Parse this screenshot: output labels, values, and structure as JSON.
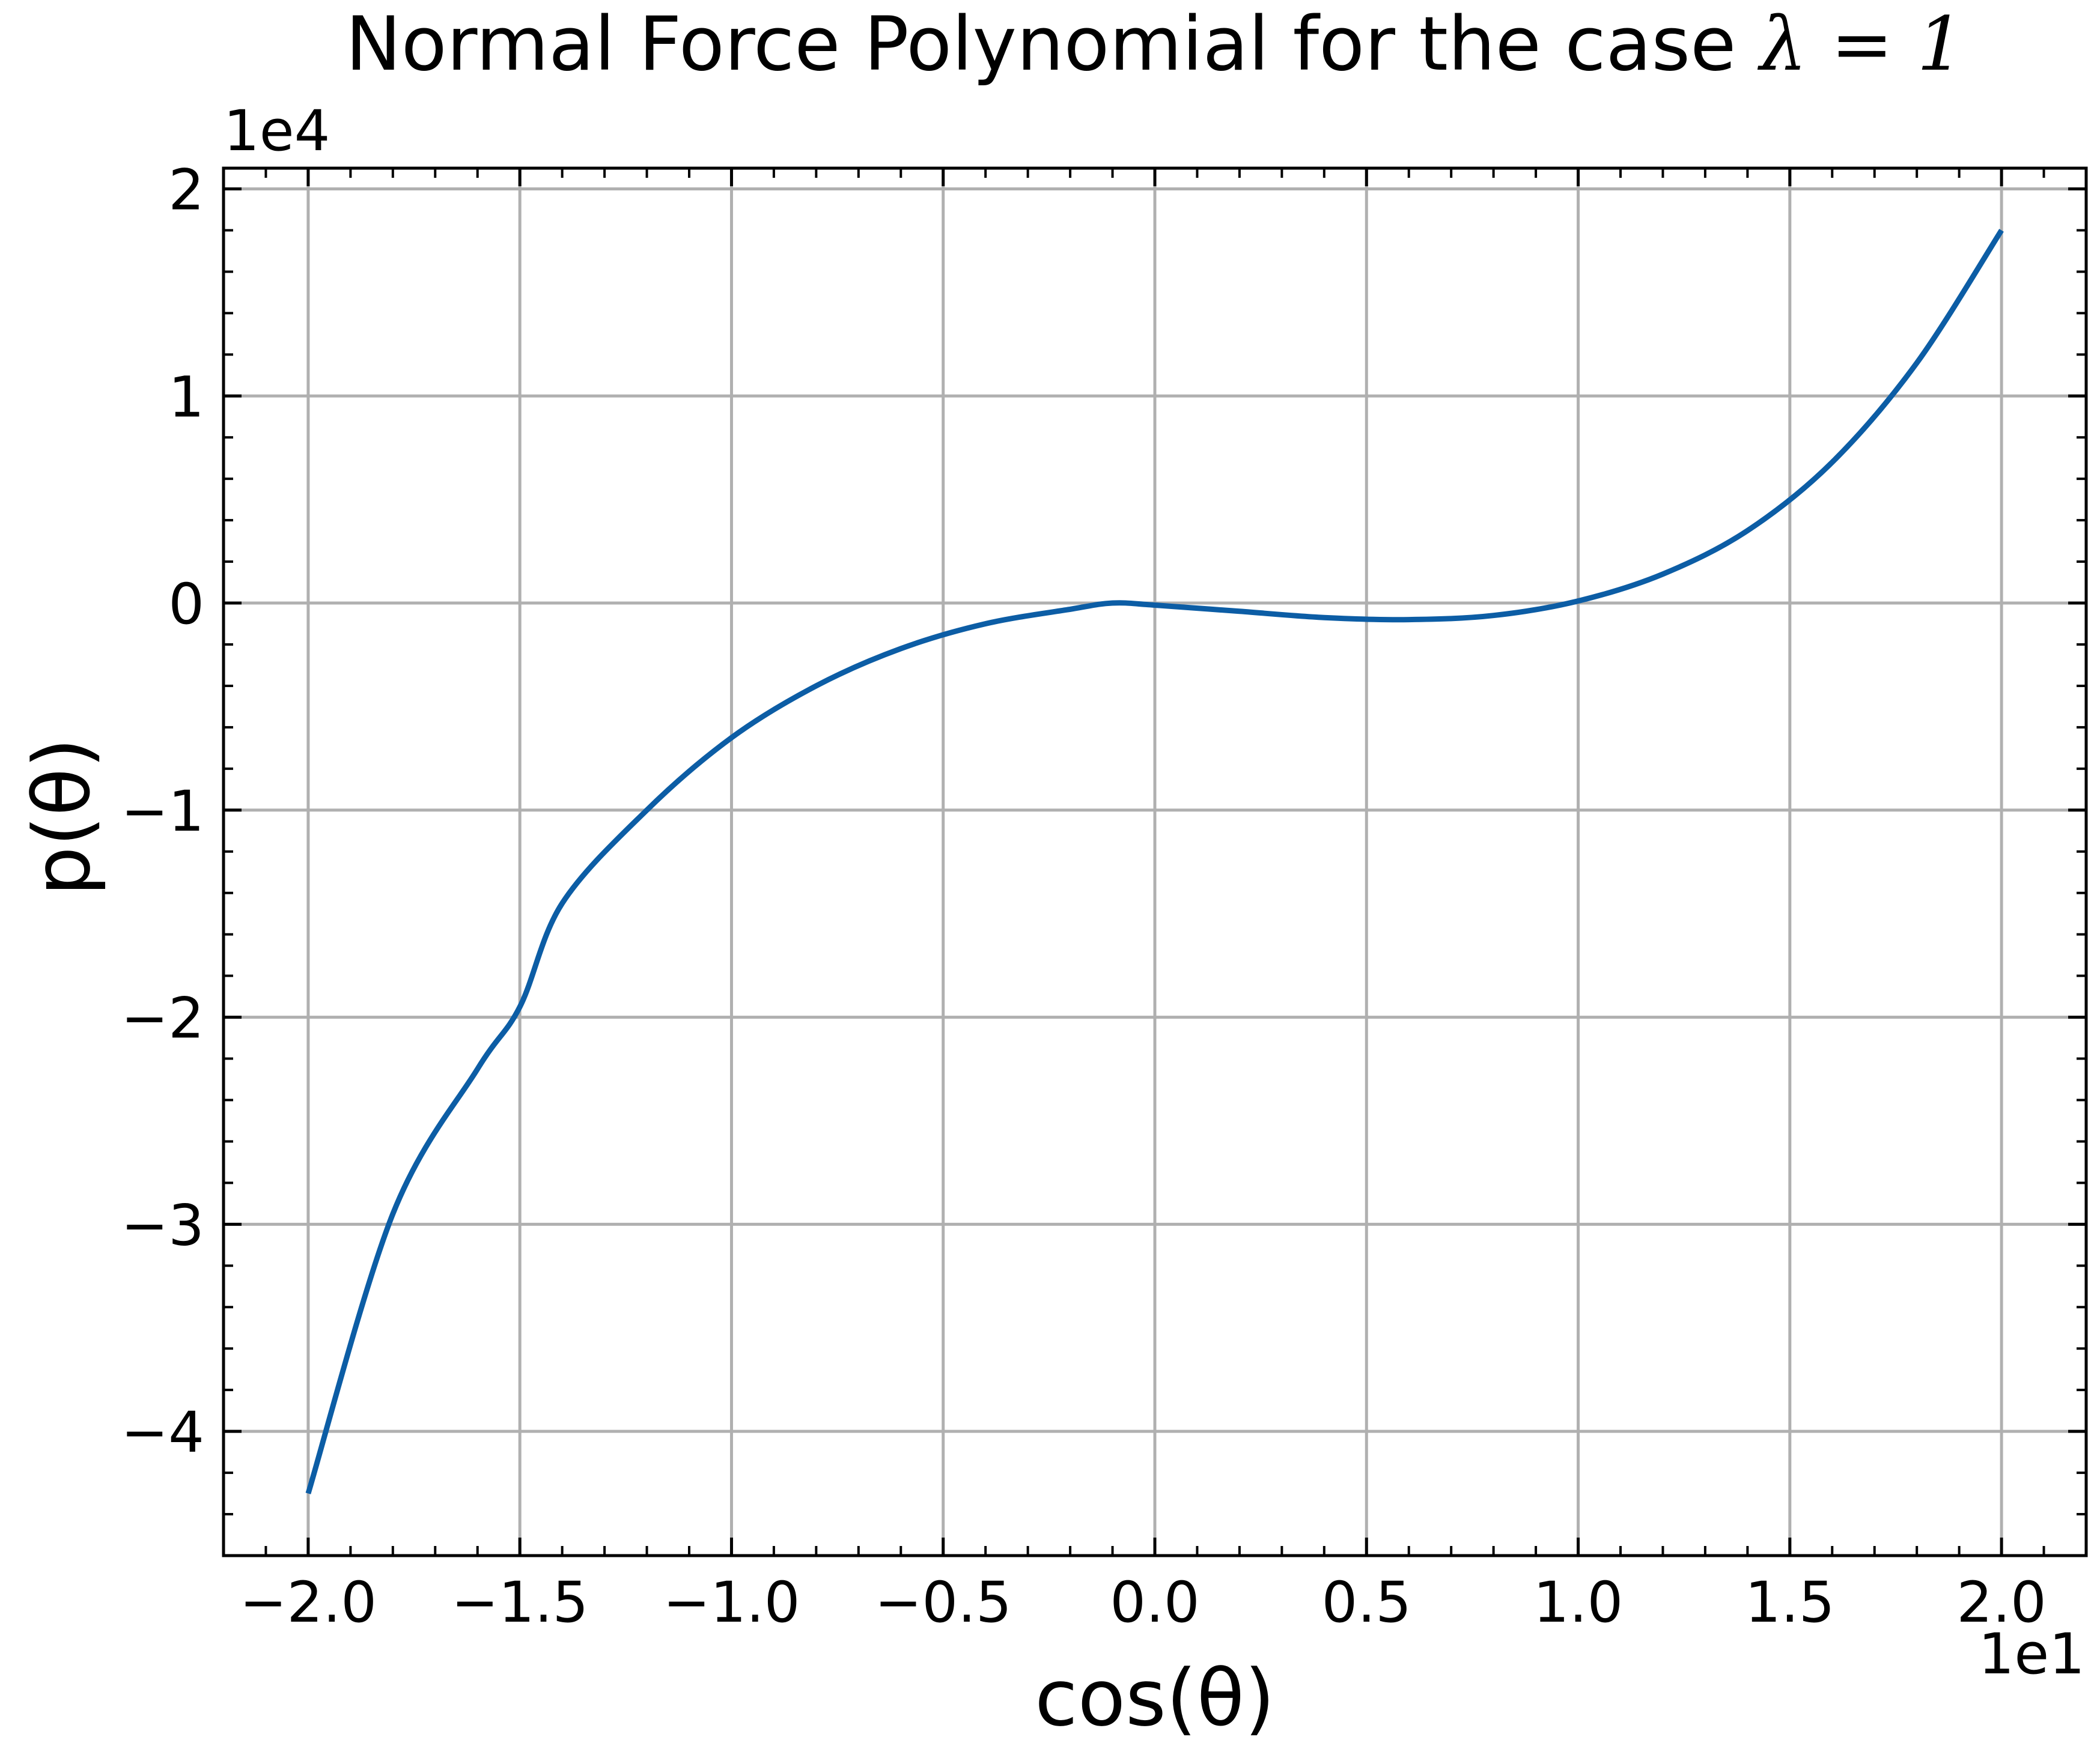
{
  "chart_data": {
    "type": "line",
    "title": "Normal Force Polynomial for the case λ = 1",
    "title_prefix": "Normal Force Polynomial for the case ",
    "title_math": "λ = 1",
    "xlabel": "cos(θ)",
    "ylabel": "p(θ)",
    "x_offset_label": "1e1",
    "y_offset_label": "1e4",
    "xlim": [
      -2.2,
      2.2
    ],
    "ylim": [
      -4.6,
      2.1
    ],
    "x_ticks": [
      -2.0,
      -1.5,
      -1.0,
      -0.5,
      0.0,
      0.5,
      1.0,
      1.5,
      2.0
    ],
    "x_tick_labels": [
      "−2.0",
      "−1.5",
      "−1.0",
      "−0.5",
      "0.0",
      "0.5",
      "1.0",
      "1.5",
      "2.0"
    ],
    "y_ticks": [
      -4,
      -3,
      -2,
      -1,
      0,
      1,
      2
    ],
    "y_tick_labels": [
      "−4",
      "−3",
      "−2",
      "−1",
      "0",
      "1",
      "2"
    ],
    "grid": true,
    "line_color": "#0c5da5",
    "grid_color": "#b0b0b0",
    "series": [
      {
        "x": [
          -2.0,
          -1.8,
          -1.6,
          -1.5,
          -1.4,
          -1.2,
          -1.0,
          -0.8,
          -0.6,
          -0.4,
          -0.2,
          -0.1,
          0.0,
          0.2,
          0.4,
          0.6,
          0.8,
          1.0,
          1.2,
          1.4,
          1.6,
          1.8,
          2.0
        ],
        "y": [
          -4.3,
          -2.95,
          -2.25,
          -1.95,
          -1.45,
          -1.0,
          -0.65,
          -0.4,
          -0.22,
          -0.1,
          -0.03,
          0.0,
          -0.01,
          -0.04,
          -0.07,
          -0.08,
          -0.06,
          0.01,
          0.14,
          0.35,
          0.68,
          1.16,
          1.8
        ]
      }
    ]
  }
}
